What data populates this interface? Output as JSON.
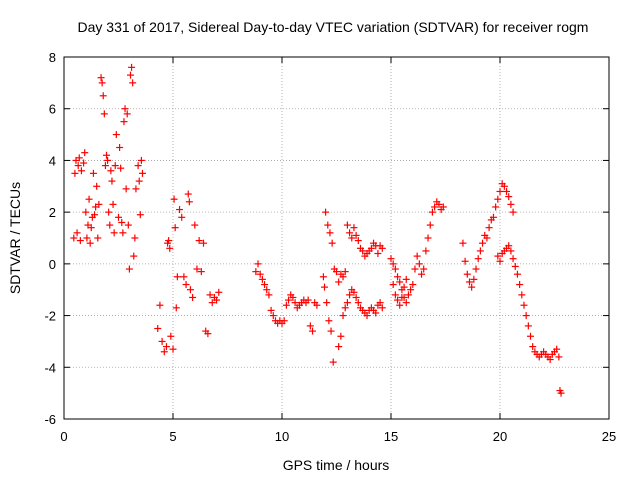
{
  "chart_data": {
    "type": "scatter",
    "title": "Day 331 of 2017, Sidereal Day-to-day VTEC variation (SDTVAR) for receiver rogm",
    "xlabel": "GPS time / hours",
    "ylabel": "SDTVAR / TECUs",
    "xlim": [
      0,
      25
    ],
    "ylim": [
      -6,
      8
    ],
    "xticks": [
      0,
      5,
      10,
      15,
      20,
      25
    ],
    "yticks": [
      -6,
      -4,
      -2,
      0,
      2,
      4,
      6,
      8
    ],
    "xtick_labels": [
      "0",
      "5",
      "10",
      "15",
      "20",
      "25"
    ],
    "ytick_labels": [
      "-6",
      "-4",
      "-2",
      "0",
      "2",
      "4",
      "6",
      "8"
    ],
    "grid": true,
    "marker": "+",
    "color": "#ff0000",
    "series": [
      {
        "name": "SDTVAR",
        "x": [
          0.45,
          0.5,
          0.55,
          0.6,
          0.65,
          0.7,
          0.75,
          0.8,
          0.9,
          0.95,
          1.0,
          1.05,
          1.1,
          1.15,
          1.2,
          1.25,
          1.3,
          1.35,
          1.4,
          1.45,
          1.5,
          1.55,
          1.6,
          1.7,
          1.75,
          1.8,
          1.85,
          1.9,
          1.95,
          2.0,
          2.05,
          2.1,
          2.15,
          2.2,
          2.25,
          2.3,
          2.35,
          2.4,
          2.5,
          2.55,
          2.6,
          2.65,
          2.7,
          2.75,
          2.8,
          2.85,
          2.9,
          2.95,
          3.0,
          3.05,
          3.1,
          3.15,
          3.2,
          3.25,
          3.3,
          3.4,
          3.45,
          3.5,
          3.55,
          3.6,
          4.3,
          4.4,
          4.5,
          4.6,
          4.7,
          4.75,
          4.8,
          4.85,
          4.9,
          5.0,
          5.05,
          5.1,
          5.15,
          5.2,
          5.3,
          5.4,
          5.5,
          5.6,
          5.7,
          5.75,
          5.8,
          5.9,
          6.0,
          6.1,
          6.2,
          6.3,
          6.4,
          6.5,
          6.6,
          6.7,
          6.8,
          6.9,
          7.0,
          7.1,
          8.8,
          8.9,
          9.0,
          9.1,
          9.2,
          9.3,
          9.4,
          9.5,
          9.6,
          9.7,
          9.8,
          9.9,
          10.0,
          10.1,
          10.2,
          10.3,
          10.4,
          10.5,
          10.6,
          10.7,
          10.8,
          10.9,
          11.0,
          11.1,
          11.2,
          11.3,
          11.4,
          11.5,
          11.6,
          11.9,
          12.0,
          12.1,
          12.2,
          12.3,
          12.4,
          12.5,
          12.6,
          12.7,
          12.8,
          12.9,
          13.0,
          13.1,
          13.2,
          13.3,
          13.4,
          13.5,
          13.6,
          13.7,
          13.8,
          13.9,
          14.0,
          14.1,
          14.2,
          14.3,
          14.4,
          14.5,
          14.6,
          11.95,
          12.05,
          12.15,
          12.25,
          12.35,
          12.6,
          12.7,
          12.8,
          12.9,
          13.0,
          13.1,
          13.2,
          13.3,
          13.4,
          13.5,
          13.6,
          13.7,
          13.8,
          13.9,
          14.0,
          14.1,
          14.2,
          14.3,
          14.4,
          14.5,
          14.6,
          15.0,
          15.1,
          15.2,
          15.3,
          15.4,
          15.5,
          15.6,
          15.7,
          15.8,
          15.9,
          16.0,
          16.1,
          16.2,
          16.3,
          16.4,
          16.5,
          16.6,
          16.7,
          16.8,
          16.9,
          17.0,
          17.1,
          17.2,
          17.3,
          17.4,
          15.1,
          15.2,
          15.3,
          15.4,
          15.5,
          15.6,
          15.7,
          18.3,
          18.4,
          18.5,
          18.6,
          18.7,
          18.8,
          18.9,
          19.0,
          19.1,
          19.2,
          19.3,
          19.4,
          19.5,
          19.6,
          19.7,
          19.8,
          19.9,
          20.0,
          20.1,
          20.2,
          20.3,
          20.4,
          20.5,
          20.6,
          19.9,
          20.0,
          20.1,
          20.2,
          20.3,
          20.4,
          20.5,
          20.6,
          20.7,
          20.8,
          20.9,
          21.0,
          21.1,
          21.2,
          21.3,
          21.4,
          21.5,
          21.6,
          21.7,
          21.8,
          21.9,
          22.0,
          22.1,
          22.2,
          22.3,
          22.4,
          22.5,
          22.6,
          22.7,
          22.75,
          22.8
        ],
        "y": [
          1.0,
          3.5,
          4.0,
          1.2,
          3.8,
          4.1,
          0.9,
          3.6,
          3.9,
          4.3,
          2.0,
          1.0,
          1.5,
          2.5,
          0.8,
          1.4,
          1.8,
          3.5,
          1.9,
          2.2,
          3.0,
          1.0,
          2.3,
          7.2,
          7.0,
          6.5,
          5.8,
          3.8,
          4.2,
          4.0,
          2.0,
          1.5,
          3.6,
          3.2,
          2.3,
          1.2,
          3.8,
          5.0,
          1.8,
          4.5,
          3.7,
          1.6,
          1.2,
          5.5,
          6.0,
          2.9,
          5.8,
          1.5,
          -0.2,
          7.3,
          7.6,
          7.0,
          0.3,
          1.0,
          2.9,
          3.8,
          3.2,
          1.9,
          4.0,
          3.5,
          -2.5,
          -1.6,
          -3.0,
          -3.4,
          -3.2,
          0.8,
          0.9,
          0.6,
          -2.8,
          -3.3,
          2.5,
          1.4,
          -1.7,
          -0.5,
          2.1,
          1.8,
          -0.5,
          -0.8,
          2.7,
          2.4,
          -1.0,
          -1.3,
          1.5,
          -0.2,
          0.9,
          -0.3,
          0.8,
          -2.6,
          -2.7,
          -1.2,
          -1.5,
          -1.3,
          -1.4,
          -1.1,
          -0.3,
          0.0,
          -0.4,
          -0.6,
          -0.8,
          -1.0,
          -1.2,
          -1.8,
          -2.0,
          -2.2,
          -2.3,
          -2.2,
          -2.3,
          -2.2,
          -1.6,
          -1.4,
          -1.2,
          -1.3,
          -1.5,
          -1.7,
          -1.6,
          -1.5,
          -1.4,
          -1.5,
          -1.4,
          -2.4,
          -2.6,
          -1.5,
          -1.6,
          -0.5,
          2.0,
          1.5,
          1.2,
          0.8,
          -0.2,
          -0.3,
          -0.7,
          -0.4,
          -0.5,
          -0.3,
          1.5,
          1.2,
          1.0,
          1.4,
          1.1,
          0.9,
          0.6,
          0.5,
          0.3,
          0.4,
          0.5,
          0.6,
          0.8,
          0.7,
          0.4,
          0.7,
          0.6,
          -0.9,
          -1.5,
          -2.2,
          -2.6,
          -3.8,
          -3.2,
          -2.8,
          -2.0,
          -1.7,
          -1.5,
          -1.2,
          -1.0,
          -1.1,
          -1.3,
          -1.5,
          -1.7,
          -1.8,
          -1.9,
          -2.0,
          -1.8,
          -1.7,
          -1.8,
          -1.9,
          -1.6,
          -1.5,
          -1.7,
          0.2,
          0.0,
          -0.2,
          -0.5,
          -0.7,
          -1.0,
          -1.3,
          -1.5,
          -1.2,
          -1.0,
          -0.8,
          -0.2,
          0.3,
          0.0,
          -0.4,
          -0.2,
          0.5,
          1.0,
          1.5,
          2.0,
          2.2,
          2.4,
          2.3,
          2.1,
          2.2,
          -0.8,
          -1.2,
          -1.4,
          -1.6,
          -1.3,
          -0.9,
          -0.6,
          0.8,
          0.1,
          -0.4,
          -0.7,
          -0.9,
          -0.6,
          -0.2,
          0.2,
          0.5,
          0.8,
          1.1,
          1.0,
          1.4,
          1.7,
          1.8,
          2.2,
          2.5,
          2.8,
          3.1,
          3.0,
          2.8,
          2.6,
          2.3,
          2.0,
          0.3,
          0.1,
          0.4,
          0.5,
          0.6,
          0.7,
          0.5,
          0.2,
          -0.1,
          -0.4,
          -0.8,
          -1.2,
          -1.6,
          -2.0,
          -2.4,
          -2.8,
          -3.2,
          -3.4,
          -3.5,
          -3.6,
          -3.5,
          -3.4,
          -3.5,
          -3.6,
          -3.7,
          -3.5,
          -3.4,
          -3.3,
          -3.6,
          -4.9,
          -5.0
        ]
      }
    ]
  }
}
